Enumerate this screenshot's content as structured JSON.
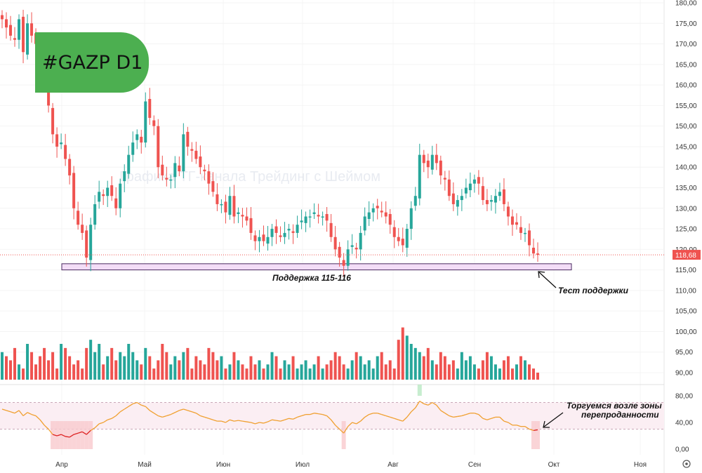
{
  "badge": {
    "text": "#GAZP D1",
    "color": "#4caf50"
  },
  "watermark": "Графика ТГ-канала Трейдинг с Шеймом",
  "colors": {
    "up": "#26a69a",
    "down": "#ef5350",
    "rsi_line": "#f0a030",
    "rsi_over": "#22cc22",
    "rsi_under": "#dd2222",
    "support_fill": "#f3ddf7",
    "support_stroke": "#4a2a60"
  },
  "price_axis": {
    "ticks": [
      "180,00",
      "175,00",
      "170,00",
      "165,00",
      "160,00",
      "155,00",
      "150,00",
      "145,00",
      "140,00",
      "135,00",
      "130,00",
      "125,00",
      "120,00",
      "115,00",
      "110,00",
      "105,00",
      "100,00",
      "95,00",
      "90,00"
    ],
    "last_price": "118,68"
  },
  "rsi_axis": {
    "ticks": [
      "80,00",
      "40,00",
      "0,00"
    ]
  },
  "time_axis": {
    "months": [
      "Апр",
      "Май",
      "Июн",
      "Июл",
      "Авг",
      "Сен",
      "Окт",
      "Ноя"
    ]
  },
  "settings_icon": "gear-icon",
  "annotations": {
    "support_label": "Поддержка 115-116",
    "support_test": "Тест поддержки",
    "oversold_line1": "Торгуемся возле зоны",
    "oversold_line2": "перепроданности"
  },
  "chart_data": {
    "type": "candlestick",
    "ticker": "GAZP",
    "timeframe": "D1",
    "price_range": [
      90,
      180
    ],
    "support_zone": [
      115,
      116.5
    ],
    "rsi_levels": [
      30,
      70
    ],
    "rsi_range": [
      0,
      80
    ],
    "last_close": 118.68,
    "closes": [
      176,
      174,
      172,
      171,
      176,
      168,
      175,
      172,
      170,
      166,
      160,
      155,
      148,
      145,
      146,
      142,
      138,
      130,
      126,
      124,
      118,
      126,
      131,
      134,
      133,
      135,
      133,
      130,
      136,
      139,
      143,
      146,
      148,
      146,
      156,
      152,
      150,
      140,
      138,
      137,
      137,
      141,
      139,
      148,
      145,
      144,
      142,
      140,
      139,
      136,
      134,
      131,
      131,
      129,
      133,
      128,
      129,
      128,
      127,
      124,
      122,
      123,
      122,
      123,
      125,
      124,
      123,
      124,
      125,
      124,
      126,
      127,
      128,
      128,
      129,
      128,
      128,
      127,
      123,
      120,
      118,
      116,
      120,
      121,
      120,
      124,
      128,
      129,
      130,
      130,
      129,
      128,
      126,
      123,
      122,
      121,
      125,
      130,
      133,
      143,
      141,
      140,
      143,
      141,
      138,
      137,
      133,
      131,
      132,
      133,
      135,
      136,
      137,
      136,
      132,
      131,
      132,
      133,
      134,
      131,
      128,
      126,
      126,
      124,
      124,
      121,
      119,
      118.68
    ],
    "volumes": [
      95,
      94,
      93,
      96,
      92,
      91,
      97,
      95,
      92,
      94,
      96,
      93,
      95,
      91,
      97,
      96,
      94,
      92,
      93,
      91,
      96,
      98,
      95,
      97,
      92,
      94,
      96,
      93,
      95,
      94,
      97,
      95,
      93,
      92,
      96,
      94,
      91,
      93,
      97,
      95,
      92,
      94,
      93,
      95,
      96,
      91,
      94,
      93,
      92,
      96,
      95,
      93,
      94,
      91,
      92,
      95,
      93,
      92,
      91,
      94,
      92,
      93,
      91,
      92,
      95,
      94,
      91,
      93,
      92,
      94,
      91,
      92,
      93,
      91,
      92,
      94,
      91,
      92,
      93,
      95,
      94,
      92,
      91,
      93,
      95,
      94,
      92,
      93,
      91,
      94,
      95,
      92,
      93,
      91,
      98,
      101,
      99,
      97,
      96,
      95,
      94,
      96,
      93,
      92,
      95,
      94,
      92,
      93,
      91,
      95,
      93,
      94,
      92,
      91,
      93,
      95,
      94,
      92,
      91,
      93,
      94,
      91,
      92,
      94,
      93,
      92,
      91,
      90
    ],
    "rsi": [
      60,
      58,
      56,
      54,
      58,
      50,
      55,
      52,
      50,
      44,
      36,
      30,
      22,
      20,
      22,
      19,
      18,
      22,
      24,
      26,
      22,
      28,
      32,
      38,
      40,
      44,
      46,
      50,
      56,
      60,
      64,
      68,
      70,
      66,
      64,
      58,
      54,
      50,
      48,
      50,
      52,
      55,
      58,
      60,
      58,
      56,
      54,
      50,
      48,
      46,
      44,
      42,
      42,
      40,
      44,
      42,
      43,
      42,
      41,
      40,
      38,
      40,
      39,
      41,
      44,
      43,
      42,
      44,
      46,
      45,
      48,
      50,
      52,
      52,
      54,
      53,
      52,
      50,
      44,
      36,
      30,
      24,
      34,
      40,
      38,
      42,
      48,
      52,
      54,
      54,
      52,
      50,
      48,
      46,
      44,
      42,
      48,
      56,
      62,
      72,
      68,
      66,
      70,
      66,
      58,
      54,
      50,
      48,
      49,
      50,
      52,
      54,
      54,
      52,
      46,
      44,
      46,
      48,
      48,
      42,
      40,
      36,
      36,
      34,
      34,
      30,
      28,
      29
    ]
  }
}
